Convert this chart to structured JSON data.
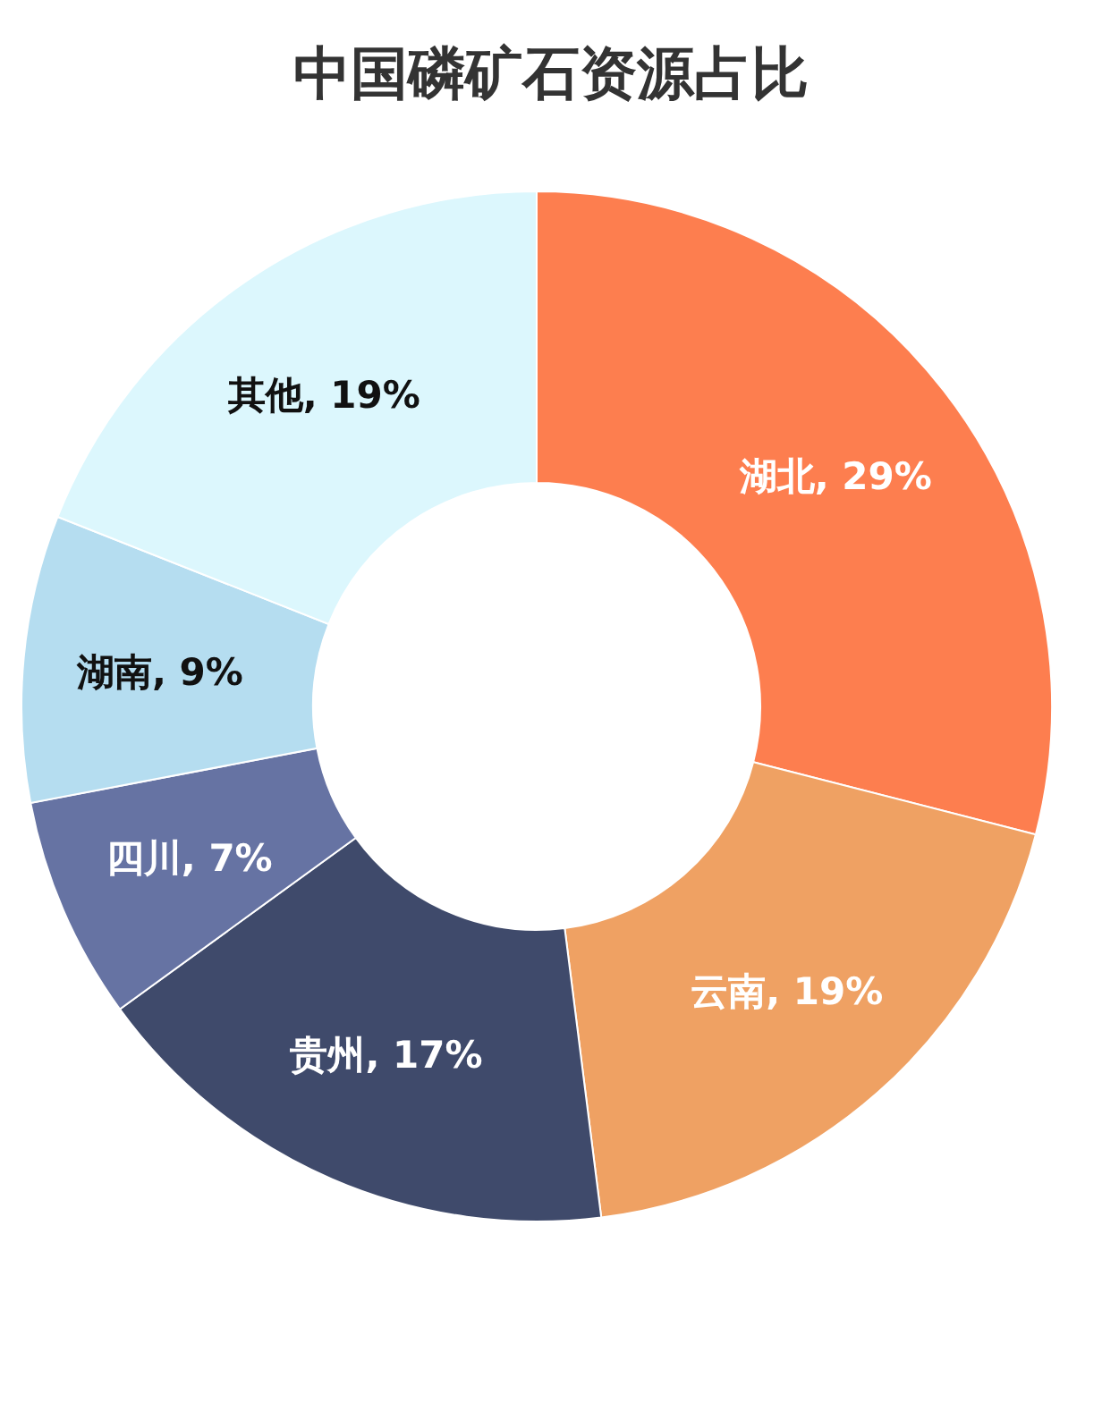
{
  "chart_data": {
    "type": "donut",
    "title": "中国磷矿石资源占比",
    "categories": [
      "湖北",
      "云南",
      "贵州",
      "四川",
      "湖南",
      "其他"
    ],
    "values": [
      29,
      19,
      17,
      7,
      9,
      19
    ],
    "colors": [
      "#fd7e4f",
      "#efa163",
      "#3f4a6b",
      "#6673a3",
      "#b5ddf0",
      "#dcf7fd"
    ],
    "value_labels": [
      ", 29%",
      ", 19%",
      ", 17%",
      ", 7%",
      ", 9%",
      ", 19%"
    ]
  }
}
